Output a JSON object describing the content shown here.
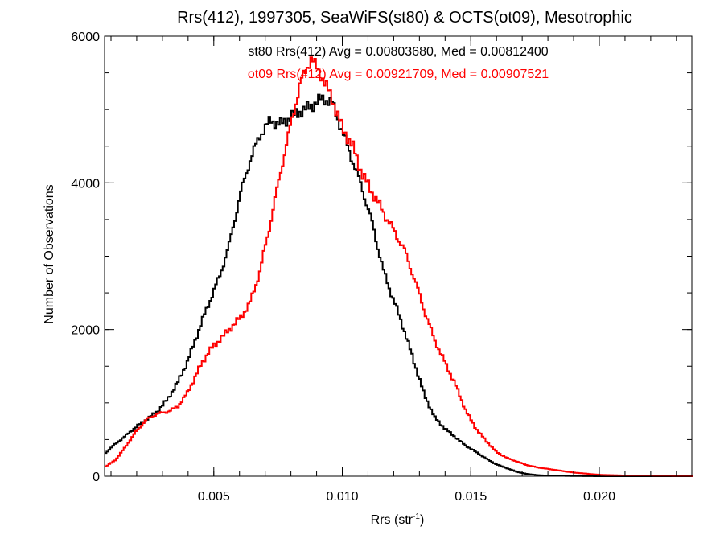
{
  "chart_data": {
    "type": "line",
    "title": "Rrs(412), 1997305, SeaWiFS(st80) & OCTS(ot09), Mesotrophic",
    "xlabel_main": "Rrs (str",
    "xlabel_sup": "-1",
    "xlabel_close": ")",
    "ylabel": "Number of Observations",
    "xlim": [
      0.00075,
      0.0236
    ],
    "ylim": [
      0,
      6000
    ],
    "x_ticks": [
      0.005,
      0.01,
      0.015,
      0.02
    ],
    "x_tick_labels": [
      "0.005",
      "0.010",
      "0.015",
      "0.020"
    ],
    "y_ticks": [
      0,
      2000,
      4000,
      6000
    ],
    "y_tick_labels": [
      "0",
      "2000",
      "4000",
      "6000"
    ],
    "grid": false,
    "series": [
      {
        "name": "st80",
        "color": "#000000",
        "annotation": "st80 Rrs(412) Avg = 0.00803680, Med = 0.00812400",
        "points": [
          [
            0.0008,
            320
          ],
          [
            0.0012,
            450
          ],
          [
            0.0016,
            560
          ],
          [
            0.002,
            680
          ],
          [
            0.0024,
            780
          ],
          [
            0.0028,
            880
          ],
          [
            0.0032,
            1050
          ],
          [
            0.0036,
            1280
          ],
          [
            0.004,
            1580
          ],
          [
            0.0044,
            1980
          ],
          [
            0.0048,
            2350
          ],
          [
            0.0052,
            2700
          ],
          [
            0.0056,
            3150
          ],
          [
            0.006,
            3800
          ],
          [
            0.0064,
            4300
          ],
          [
            0.0068,
            4650
          ],
          [
            0.0072,
            4850
          ],
          [
            0.0076,
            4800
          ],
          [
            0.008,
            4900
          ],
          [
            0.0084,
            4980
          ],
          [
            0.0088,
            5050
          ],
          [
            0.0092,
            5150
          ],
          [
            0.0096,
            5100
          ],
          [
            0.01,
            4700
          ],
          [
            0.0104,
            4300
          ],
          [
            0.0108,
            3900
          ],
          [
            0.0112,
            3400
          ],
          [
            0.0116,
            2800
          ],
          [
            0.012,
            2400
          ],
          [
            0.0124,
            2000
          ],
          [
            0.0128,
            1550
          ],
          [
            0.0132,
            1100
          ],
          [
            0.0136,
            800
          ],
          [
            0.014,
            650
          ],
          [
            0.0144,
            530
          ],
          [
            0.0148,
            420
          ],
          [
            0.0152,
            330
          ],
          [
            0.0156,
            240
          ],
          [
            0.016,
            160
          ],
          [
            0.0164,
            110
          ],
          [
            0.0168,
            60
          ],
          [
            0.0172,
            30
          ],
          [
            0.0176,
            15
          ],
          [
            0.018,
            8
          ],
          [
            0.019,
            3
          ],
          [
            0.02,
            0
          ],
          [
            0.0236,
            0
          ]
        ]
      },
      {
        "name": "ot09",
        "color": "#ff0000",
        "annotation": "ot09 Rrs(412) Avg = 0.00921709, Med = 0.00907521",
        "points": [
          [
            0.0008,
            130
          ],
          [
            0.0012,
            230
          ],
          [
            0.0016,
            420
          ],
          [
            0.002,
            620
          ],
          [
            0.0024,
            780
          ],
          [
            0.0028,
            850
          ],
          [
            0.0032,
            880
          ],
          [
            0.0036,
            950
          ],
          [
            0.004,
            1150
          ],
          [
            0.0044,
            1450
          ],
          [
            0.0048,
            1700
          ],
          [
            0.0052,
            1850
          ],
          [
            0.0056,
            2000
          ],
          [
            0.006,
            2150
          ],
          [
            0.0064,
            2350
          ],
          [
            0.0068,
            2800
          ],
          [
            0.0072,
            3450
          ],
          [
            0.0076,
            4150
          ],
          [
            0.008,
            4800
          ],
          [
            0.0084,
            5400
          ],
          [
            0.0088,
            5700
          ],
          [
            0.0092,
            5450
          ],
          [
            0.0096,
            5150
          ],
          [
            0.01,
            4750
          ],
          [
            0.0104,
            4500
          ],
          [
            0.0108,
            4100
          ],
          [
            0.0112,
            3850
          ],
          [
            0.0116,
            3600
          ],
          [
            0.012,
            3350
          ],
          [
            0.0124,
            3100
          ],
          [
            0.0128,
            2700
          ],
          [
            0.0132,
            2250
          ],
          [
            0.0136,
            1850
          ],
          [
            0.014,
            1550
          ],
          [
            0.0144,
            1250
          ],
          [
            0.0148,
            900
          ],
          [
            0.0152,
            650
          ],
          [
            0.0156,
            480
          ],
          [
            0.016,
            330
          ],
          [
            0.0164,
            250
          ],
          [
            0.0168,
            200
          ],
          [
            0.0172,
            150
          ],
          [
            0.0176,
            120
          ],
          [
            0.018,
            100
          ],
          [
            0.019,
            50
          ],
          [
            0.02,
            20
          ],
          [
            0.021,
            10
          ],
          [
            0.022,
            5
          ],
          [
            0.0236,
            2
          ]
        ]
      }
    ]
  }
}
